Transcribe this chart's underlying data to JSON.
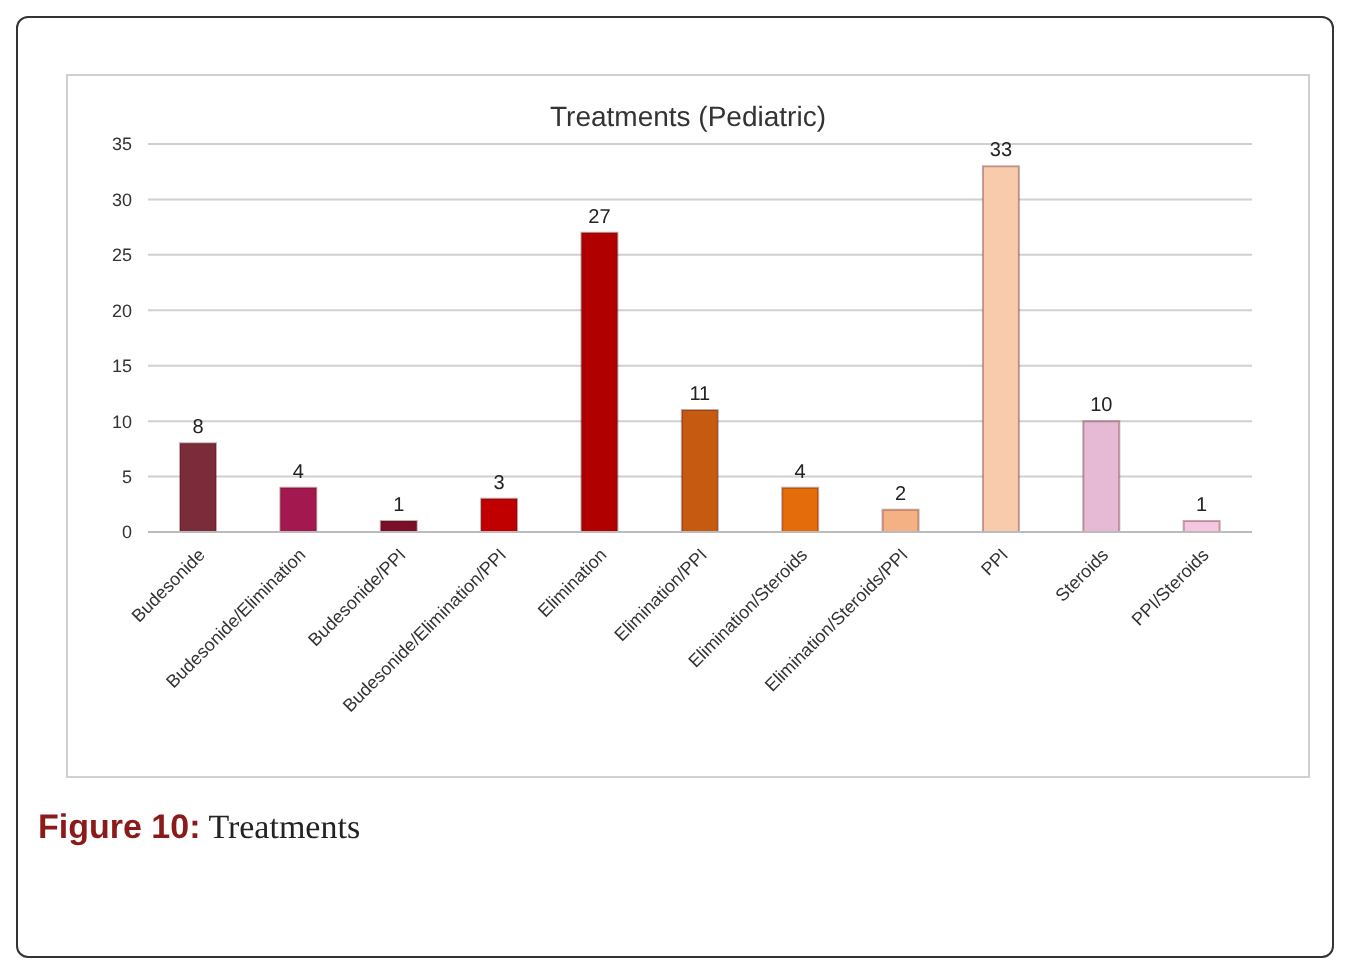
{
  "chart_data": {
    "type": "bar",
    "title": "Treatments (Pediatric)",
    "categories": [
      "Budesonide",
      "Budesonide/Elimination",
      "Budesonide/PPI",
      "Budesonide/Elimination/PPI",
      "Elimination",
      "Elimination/PPI",
      "Elimination/Steroids",
      "Elimination/Steroids/PPI",
      "PPI",
      "Steroids",
      "PPI/Steroids"
    ],
    "values": [
      8,
      4,
      1,
      3,
      27,
      11,
      4,
      2,
      33,
      10,
      1
    ],
    "colors": [
      "#7b2c3a",
      "#a3194f",
      "#7a0f2a",
      "#c00000",
      "#b00000",
      "#c55a11",
      "#e46c0a",
      "#f4b183",
      "#f8cbad",
      "#e6b9d4",
      "#f5c6e0"
    ],
    "ylim": [
      0,
      35
    ],
    "yticks": [
      0,
      5,
      10,
      15,
      20,
      25,
      30,
      35
    ],
    "grid": "y",
    "data_labels": true,
    "annotations": [
      "Figure 10: Treatments"
    ]
  }
}
